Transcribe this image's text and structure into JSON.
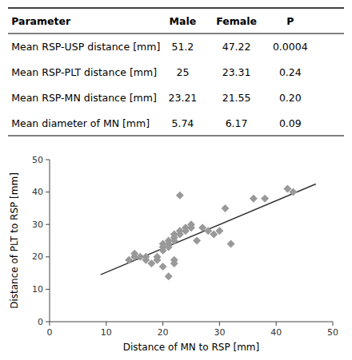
{
  "chart_data": [
    {
      "type": "table",
      "headers": [
        "Parameter",
        "Male",
        "Female",
        "P"
      ],
      "rows": [
        [
          "Mean RSP-USP distance [mm]",
          "51.2",
          "47.22",
          "0.0004"
        ],
        [
          "Mean RSP-PLT distance [mm]",
          "25",
          "23.31",
          "0.24"
        ],
        [
          "Mean RSP-MN distance [mm]",
          "23.21",
          "21.55",
          "0.20"
        ],
        [
          "Mean diameter of MN [mm]",
          "5.74",
          "6.17",
          "0.09"
        ]
      ]
    },
    {
      "type": "scatter",
      "x_label": "Distance of MN to RSP [mm]",
      "y_label": "Distance of PLT to RSP [mm]",
      "series": [
        {
          "type": "scatter",
          "color": "#999999",
          "marker": "diamond",
          "x": [
            14,
            15,
            15,
            16,
            17,
            17,
            18,
            19,
            19,
            20,
            20,
            20,
            20,
            21,
            21,
            21,
            21,
            22,
            22,
            22,
            22,
            22,
            23,
            23,
            23,
            24,
            24,
            25,
            25,
            26,
            27,
            28,
            29,
            30,
            31,
            32,
            36,
            38,
            42,
            43
          ],
          "values": [
            19,
            20,
            21,
            20,
            19,
            20,
            18,
            20,
            19,
            24,
            23,
            22,
            17,
            25,
            24,
            23,
            14,
            27,
            26,
            25,
            19,
            18,
            28,
            27,
            39,
            29,
            28,
            30,
            29,
            25,
            29,
            28,
            27,
            28,
            35,
            24,
            38,
            38,
            41,
            40
          ]
        },
        {
          "type": "line",
          "color": "#333333",
          "x": [
            9,
            47
          ],
          "values": [
            14.5,
            42.5
          ]
        }
      ],
      "xlim": [
        0,
        50
      ],
      "ylim": [
        0,
        50
      ],
      "xticks": [
        0,
        10,
        20,
        30,
        40,
        50
      ],
      "yticks": [
        0,
        10,
        20,
        30,
        40,
        50
      ]
    }
  ]
}
